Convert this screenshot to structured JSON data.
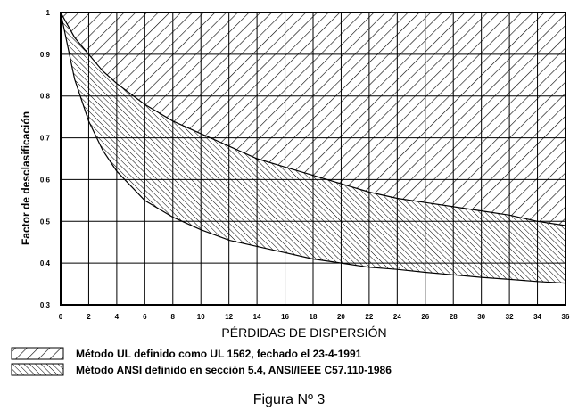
{
  "chart_data": {
    "type": "area",
    "title": "",
    "xlabel": "PÉRDIDAS DE DISPERSIÓN",
    "ylabel": "Factor de desclasificación",
    "xlim": [
      0,
      36
    ],
    "ylim": [
      0.3,
      1
    ],
    "x_ticks": [
      "0",
      "2",
      "4",
      "6",
      "8",
      "10",
      "12",
      "14",
      "16",
      "18",
      "20",
      "22",
      "24",
      "26",
      "28",
      "30",
      "32",
      "34",
      "36"
    ],
    "y_ticks": [
      "0.3",
      "0.4",
      "0.5",
      "0.6",
      "0.7",
      "0.8",
      "0.9",
      "1"
    ],
    "grid": true,
    "series": [
      {
        "name": "Método UL definido como UL 1562, fechado el 23-4-1991",
        "pattern": "hatch-backslash",
        "x": [
          0,
          1,
          2,
          3,
          4,
          6,
          8,
          10,
          12,
          14,
          16,
          18,
          20,
          22,
          24,
          26,
          28,
          30,
          32,
          34,
          36
        ],
        "values": [
          1.0,
          0.94,
          0.9,
          0.86,
          0.83,
          0.78,
          0.74,
          0.71,
          0.68,
          0.65,
          0.63,
          0.61,
          0.59,
          0.57,
          0.555,
          0.545,
          0.535,
          0.525,
          0.515,
          0.5,
          0.49
        ]
      },
      {
        "name": "Método ANSI definido en sección 5.4,  ANSI/IEEE C57.110-1986",
        "pattern": "hatch-slash",
        "x": [
          0,
          1,
          2,
          3,
          4,
          6,
          8,
          10,
          12,
          14,
          16,
          18,
          20,
          22,
          24,
          26,
          28,
          30,
          32,
          34,
          36
        ],
        "values": [
          1.0,
          0.84,
          0.74,
          0.67,
          0.62,
          0.55,
          0.51,
          0.48,
          0.455,
          0.44,
          0.425,
          0.41,
          0.4,
          0.39,
          0.385,
          0.378,
          0.372,
          0.366,
          0.361,
          0.356,
          0.352
        ]
      }
    ]
  },
  "legend": [
    {
      "label": "Método UL definido como UL 1562, fechado el 23-4-1991"
    },
    {
      "label": "Método ANSI definido en sección 5.4,  ANSI/IEEE C57.110-1986"
    }
  ],
  "caption": "Figura Nº 3"
}
